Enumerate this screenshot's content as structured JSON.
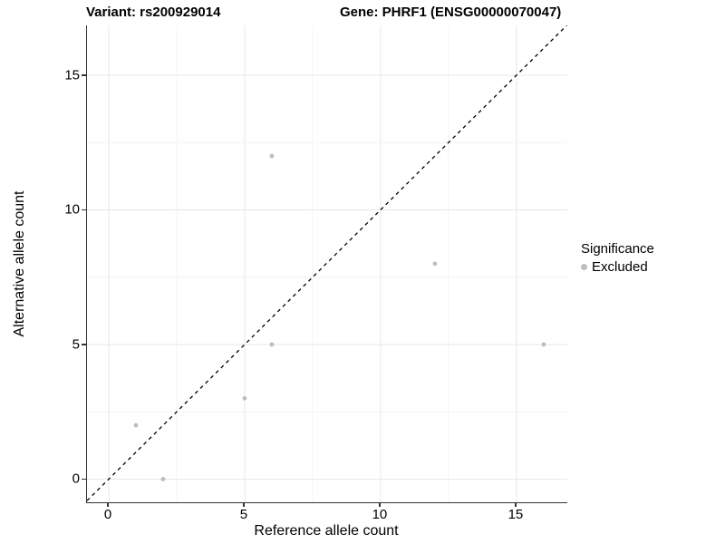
{
  "titles": {
    "variant": "Variant: rs200929014",
    "gene": "Gene: PHRF1 (ENSG00000070047)"
  },
  "chart_data": {
    "type": "scatter",
    "title": "Variant: rs200929014          Gene: PHRF1 (ENSG00000070047)",
    "xlabel": "Reference allele count",
    "ylabel": "Alternative allele count",
    "xlim": [
      -0.8,
      16.87
    ],
    "ylim": [
      -0.86,
      16.85
    ],
    "x_major_ticks": [
      0,
      5,
      10,
      15
    ],
    "y_major_ticks": [
      0,
      5,
      10,
      15
    ],
    "x_minor_ticks": [
      2.5,
      7.5,
      12.5
    ],
    "y_minor_ticks": [
      2.5,
      7.5,
      12.5
    ],
    "grid": true,
    "legend_position": "right",
    "series": [
      {
        "name": "Excluded",
        "color": "#bdbdbd",
        "points": [
          [
            1,
            2
          ],
          [
            2,
            0
          ],
          [
            5,
            3
          ],
          [
            6,
            5
          ],
          [
            6,
            12
          ],
          [
            12,
            8
          ],
          [
            16,
            5
          ]
        ]
      }
    ],
    "reference_line": {
      "type": "identity y=x",
      "style": "dashed",
      "color": "#000000"
    },
    "legend": {
      "title": "Significance",
      "entries": [
        {
          "label": "Excluded",
          "color": "#bdbdbd"
        }
      ]
    }
  },
  "colors": {
    "background": "#ffffff",
    "axis_line": "#333333",
    "major_grid": "#e7e7e7",
    "minor_grid": "#f3f3f3",
    "point": "#bdbdbd",
    "text": "#000000"
  }
}
